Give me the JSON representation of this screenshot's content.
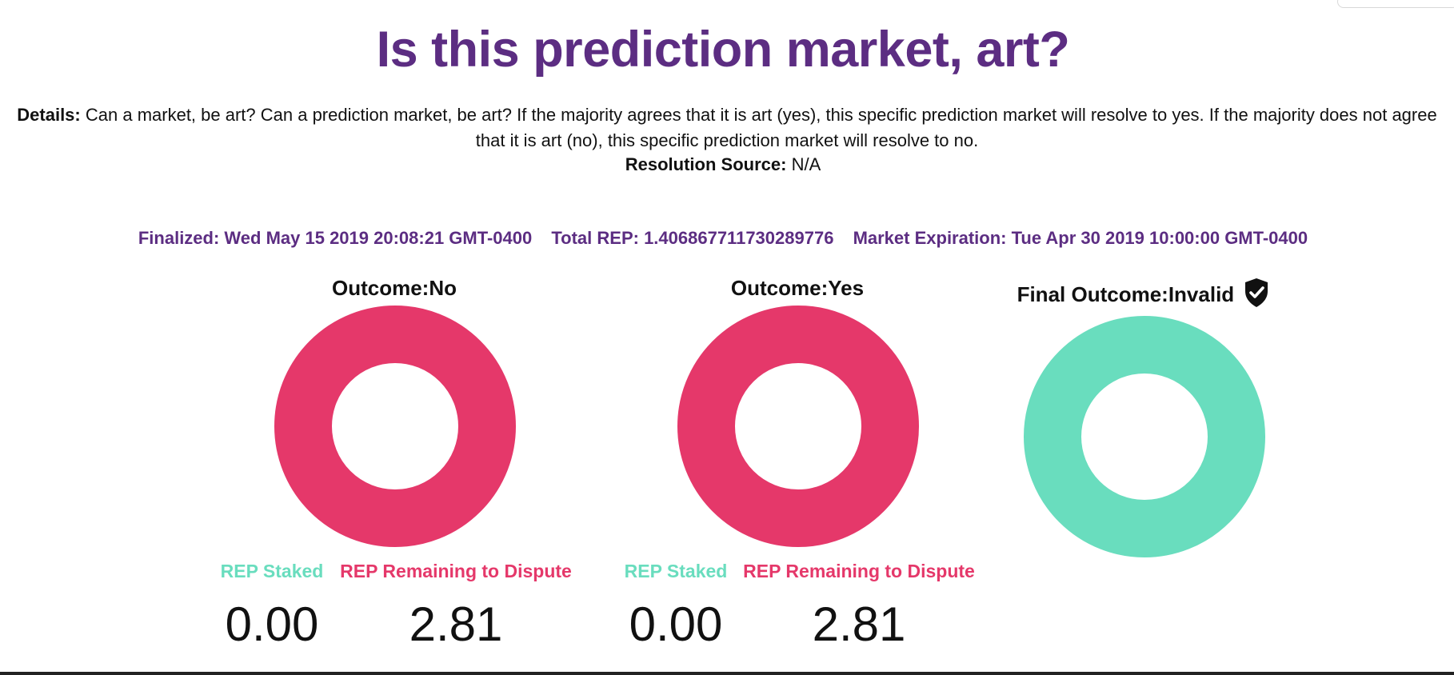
{
  "title": "Is this prediction market, art?",
  "details": {
    "label": "Details:",
    "text": "Can a market, be art? Can a prediction market, be art? If the majority agrees that it is art (yes), this specific prediction market will resolve to yes. If the majority does not agree that it is art (no), this specific prediction market will resolve to no."
  },
  "resolution": {
    "label": "Resolution Source:",
    "value": "N/A"
  },
  "meta": {
    "finalized": "Finalized: Wed May 15 2019 20:08:21 GMT-0400",
    "total_rep": "Total REP: 1.406867711730289776",
    "expiration": "Market Expiration: Tue Apr 30 2019 10:00:00 GMT-0400"
  },
  "outcomes": [
    {
      "title": "Outcome:No",
      "color": "#e5386a",
      "staked_label": "REP Staked",
      "remaining_label": "REP Remaining to Dispute",
      "staked_value": "0.00",
      "remaining_value": "2.81"
    },
    {
      "title": "Outcome:Yes",
      "color": "#e5386a",
      "staked_label": "REP Staked",
      "remaining_label": "REP Remaining to Dispute",
      "staked_value": "0.00",
      "remaining_value": "2.81"
    }
  ],
  "final_outcome": {
    "title": "Final Outcome:Invalid",
    "color": "#69ddbe",
    "icon": "verified-shield-check-icon"
  },
  "colors": {
    "brand_purple": "#5c2d82",
    "staked_green": "#69ddbe",
    "dispute_red": "#e5386a"
  }
}
